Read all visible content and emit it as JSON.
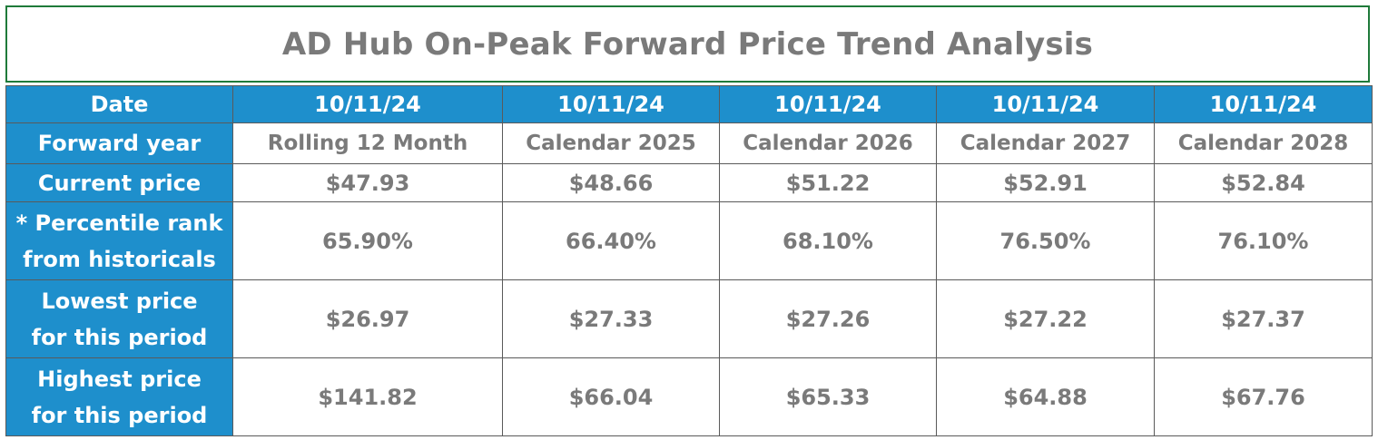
{
  "title": "AD Hub On-Peak Forward Price Trend Analysis",
  "row_labels": {
    "date": "Date",
    "forward_year": "Forward year",
    "current_price": "Current price",
    "percentile_line1": "* Percentile rank",
    "percentile_line2": "from historicals",
    "lowest_line1": "Lowest price",
    "lowest_line2": "for this period",
    "highest_line1": "Highest price",
    "highest_line2": "for this period"
  },
  "columns": [
    {
      "date": "10/11/24",
      "forward_year": "Rolling 12 Month",
      "current_price": "$47.93",
      "percentile": "65.90%",
      "lowest": "$26.97",
      "highest": "$141.82"
    },
    {
      "date": "10/11/24",
      "forward_year": "Calendar 2025",
      "current_price": "$48.66",
      "percentile": "66.40%",
      "lowest": "$27.33",
      "highest": "$66.04"
    },
    {
      "date": "10/11/24",
      "forward_year": "Calendar 2026",
      "current_price": "$51.22",
      "percentile": "68.10%",
      "lowest": "$27.26",
      "highest": "$65.33"
    },
    {
      "date": "10/11/24",
      "forward_year": "Calendar 2027",
      "current_price": "$52.91",
      "percentile": "76.50%",
      "lowest": "$27.22",
      "highest": "$64.88"
    },
    {
      "date": "10/11/24",
      "forward_year": "Calendar 2028",
      "current_price": "$52.84",
      "percentile": "76.10%",
      "lowest": "$27.37",
      "highest": "$67.76"
    }
  ]
}
